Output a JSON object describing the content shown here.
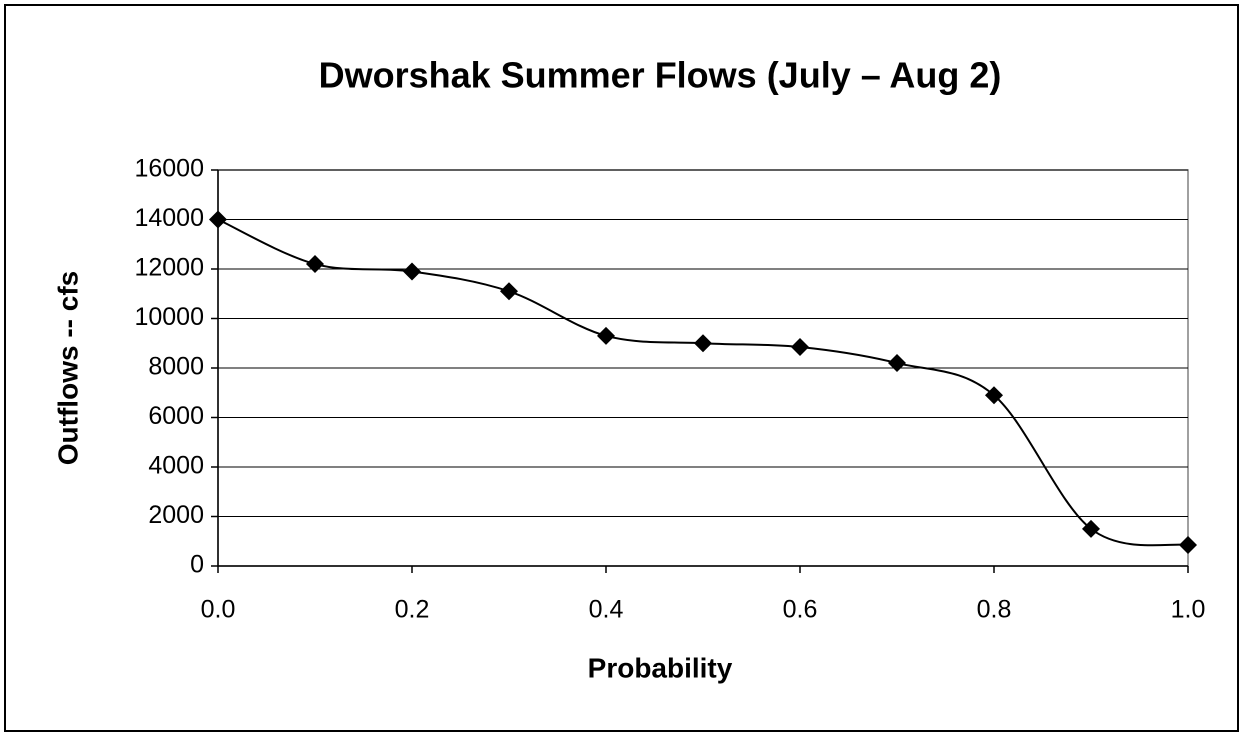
{
  "chart_data": {
    "type": "line",
    "title": "Dworshak Summer Flows (July – Aug 2)",
    "x_label": "Probability",
    "y_label": "Outflows -- cfs",
    "x": [
      0,
      0.1,
      0.2,
      0.3,
      0.4,
      0.5,
      0.6,
      0.7,
      0.8,
      0.9,
      1.0
    ],
    "series": [
      {
        "color": "#000000",
        "values": [
          14000,
          12200,
          11900,
          11100,
          9300,
          9000,
          8850,
          8200,
          6900,
          1500,
          850
        ]
      }
    ],
    "xlim": [
      0,
      1
    ],
    "xticks": [
      {
        "value": 0,
        "label": "0.0"
      },
      0.2,
      0.4,
      0.6,
      0.8,
      {
        "value": 1,
        "label": "1.0"
      }
    ],
    "ylim": [
      0,
      16000
    ],
    "yticks": [
      0,
      2000,
      4000,
      6000,
      8000,
      10000,
      12000,
      14000,
      16000
    ],
    "grid": true,
    "smooth": true
  }
}
